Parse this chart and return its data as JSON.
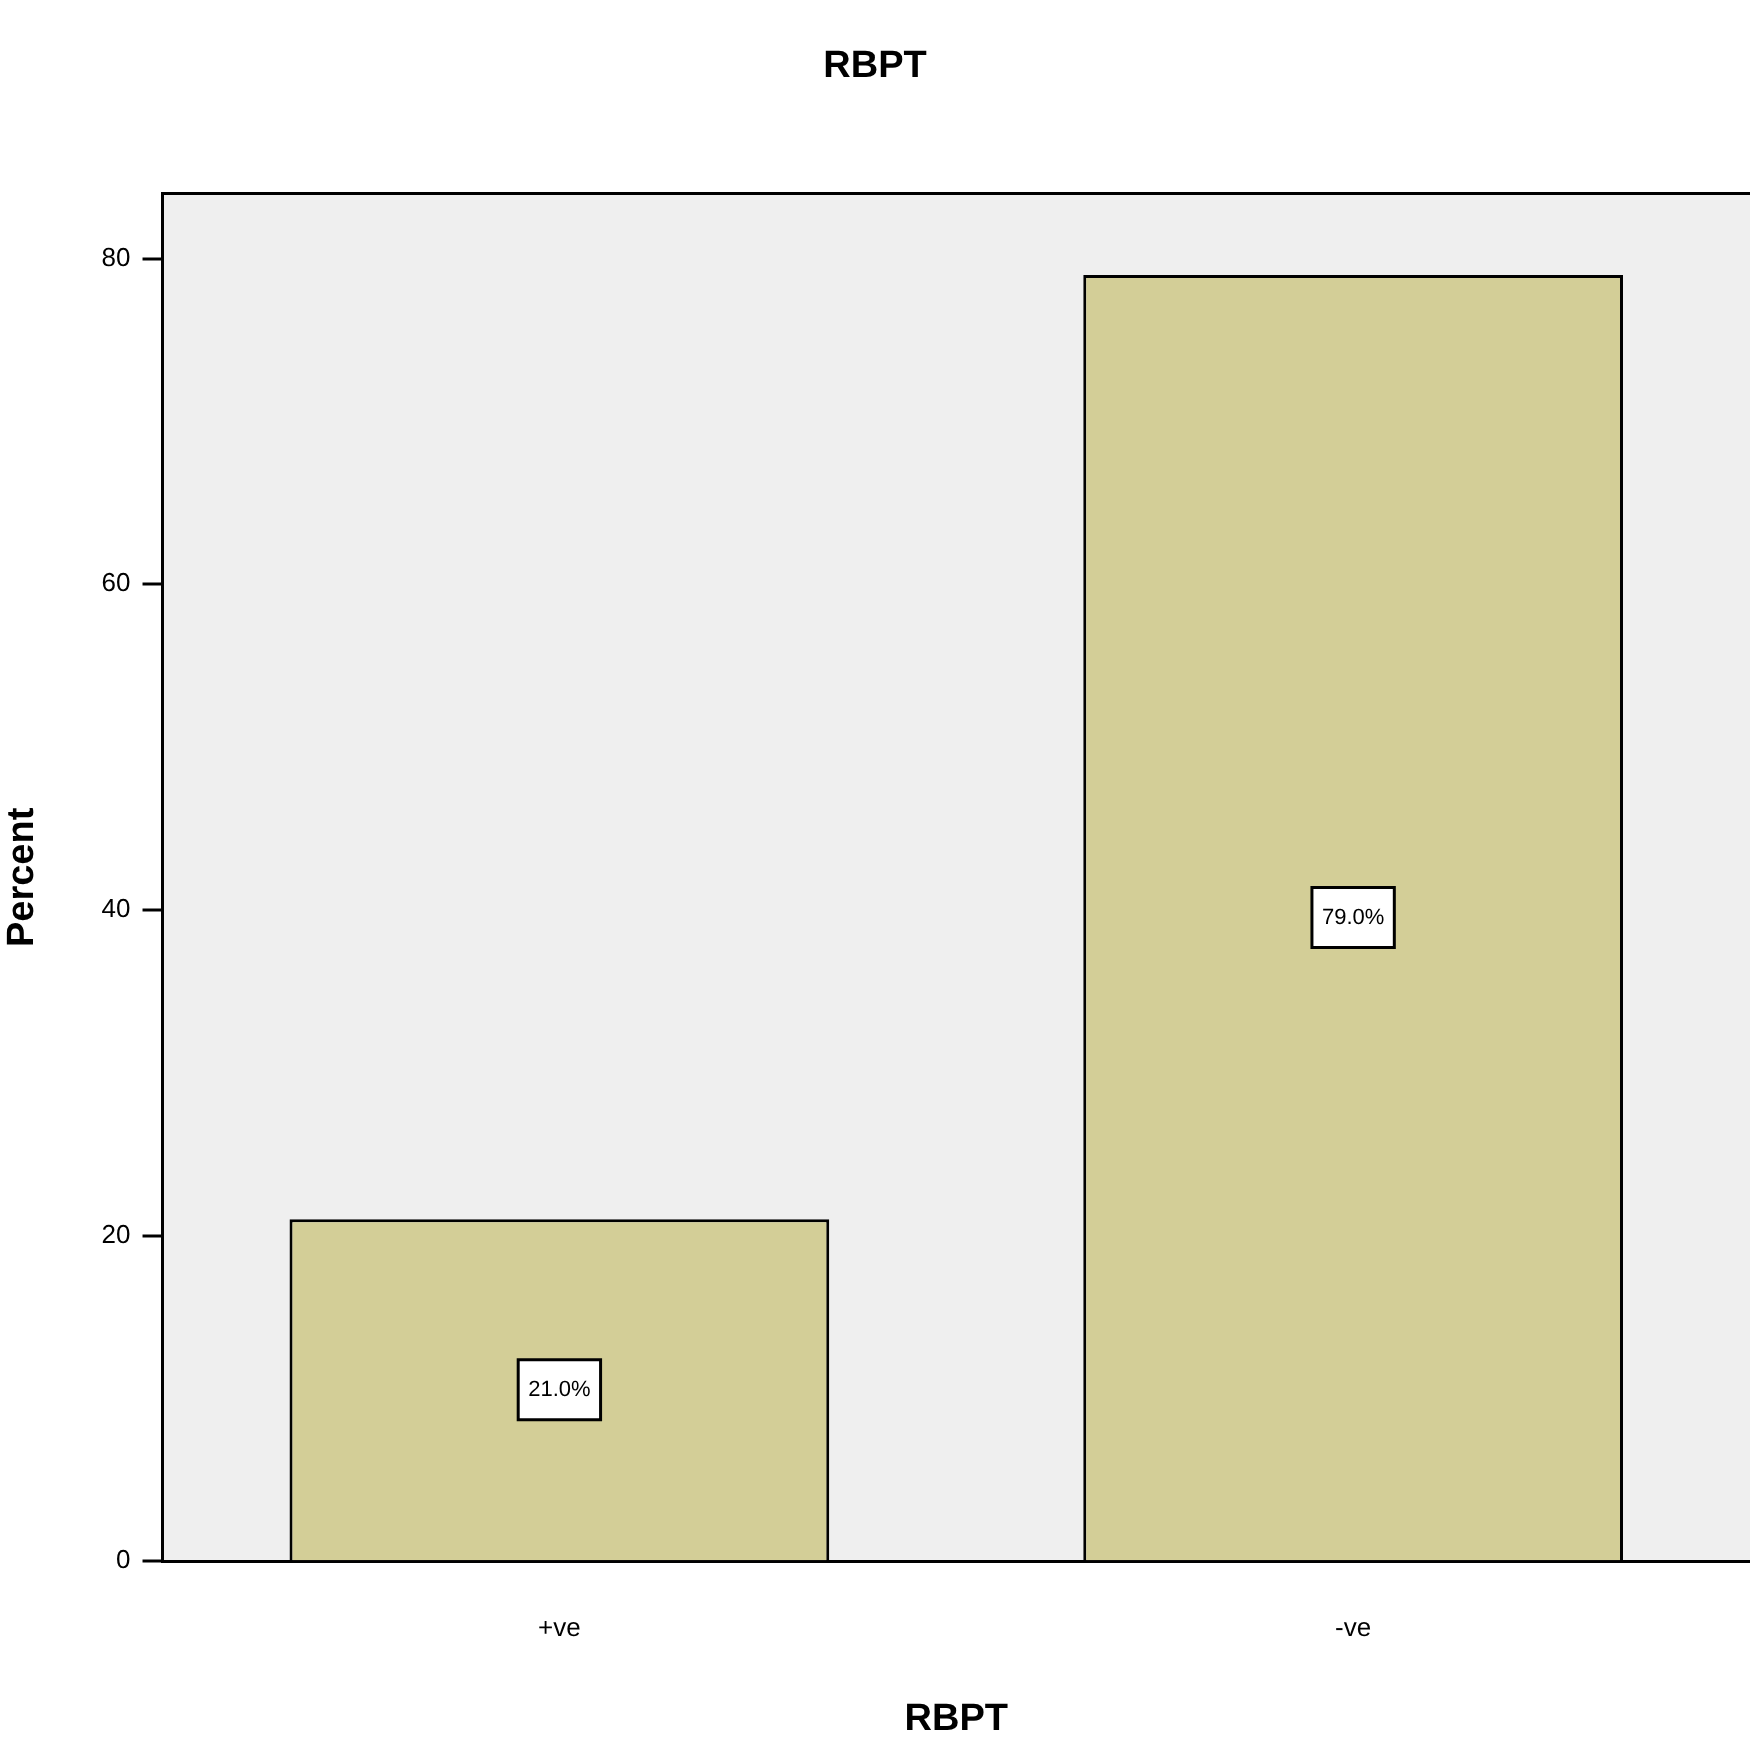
{
  "chart_data": {
    "type": "bar",
    "title": "RBPT",
    "xlabel": "RBPT",
    "ylabel": "Percent",
    "categories": [
      "+ve",
      "-ve"
    ],
    "values": [
      21.0,
      79.0
    ],
    "value_labels": [
      "21.0%",
      "79.0%"
    ],
    "color": "#d3ce97",
    "ylim": [
      0,
      84
    ],
    "yticks": [
      0,
      20,
      40,
      60,
      80
    ],
    "grid": false,
    "legend": false
  }
}
